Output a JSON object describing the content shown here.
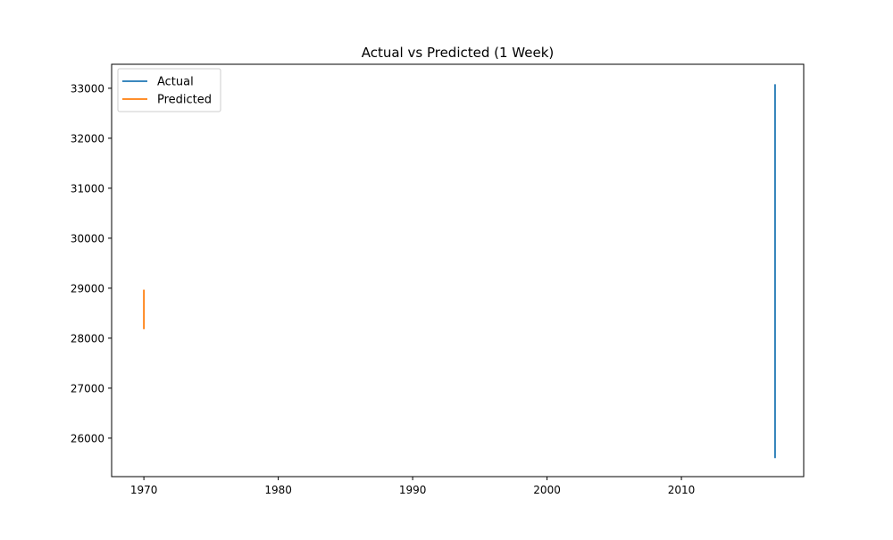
{
  "chart_data": {
    "type": "line",
    "title": "Actual vs Predicted (1 Week)",
    "xlabel": "",
    "ylabel": "",
    "xlim": [
      1967.6,
      2019.1
    ],
    "ylim": [
      25230,
      33480
    ],
    "xticks": [
      1970,
      1980,
      1990,
      2000,
      2010
    ],
    "yticks": [
      26000,
      27000,
      28000,
      29000,
      30000,
      31000,
      32000,
      33000
    ],
    "grid": false,
    "legend_position": "upper left",
    "series": [
      {
        "name": "Actual",
        "color": "#1f77b4",
        "x": [
          2016.97,
          2016.97,
          2016.97,
          2016.97,
          2016.97
        ],
        "y": [
          33080,
          32250,
          33000,
          32700,
          25600
        ]
      },
      {
        "name": "Predicted",
        "color": "#ff7f0e",
        "x": [
          1970.0,
          1970.0,
          1970.0
        ],
        "y": [
          28970,
          28600,
          28180
        ]
      }
    ]
  }
}
